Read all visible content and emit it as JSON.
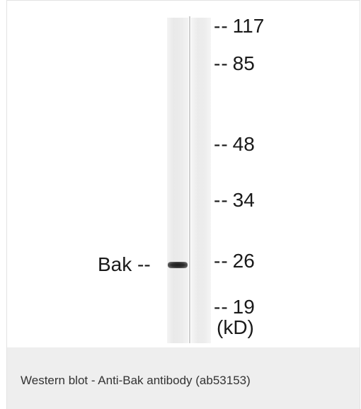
{
  "blot": {
    "lanes": 2,
    "band": {
      "label": "Bak",
      "dash": "--",
      "lane": 1,
      "marker_kd": 26
    },
    "markers": [
      {
        "dash": "--",
        "label": "117"
      },
      {
        "dash": "--",
        "label": "85"
      },
      {
        "dash": "--",
        "label": "48"
      },
      {
        "dash": "--",
        "label": "34"
      },
      {
        "dash": "--",
        "label": "26"
      },
      {
        "dash": "--",
        "label": "19"
      }
    ],
    "unit": "(kD)"
  },
  "caption": {
    "text": "Western blot - Anti-Bak antibody (ab53153)"
  }
}
